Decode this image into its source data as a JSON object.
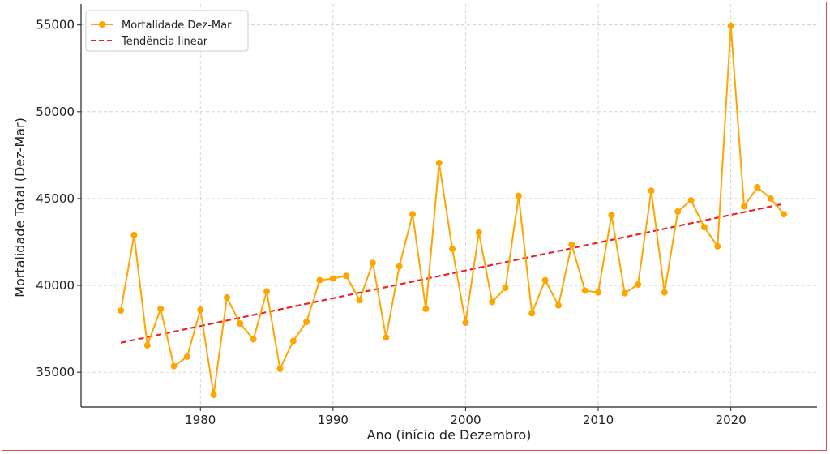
{
  "chart_data": {
    "type": "line",
    "title": "",
    "xlabel": "Ano (início de Dezembro)",
    "ylabel": "Mortalidade Total (Dez-Mar)",
    "xlim": [
      1971,
      2026.5
    ],
    "ylim": [
      33000,
      56200
    ],
    "xticks": [
      1980,
      1990,
      2000,
      2010,
      2020
    ],
    "yticks": [
      35000,
      40000,
      45000,
      50000,
      55000
    ],
    "grid": true,
    "legend_position": "top-left",
    "colors": {
      "series": "#ffa500",
      "trend": "#ee2222",
      "axis": "#222222",
      "grid": "#cccccc"
    },
    "x": [
      1974,
      1975,
      1976,
      1977,
      1978,
      1979,
      1980,
      1981,
      1982,
      1983,
      1984,
      1985,
      1986,
      1987,
      1988,
      1989,
      1990,
      1991,
      1992,
      1993,
      1994,
      1995,
      1996,
      1997,
      1998,
      1999,
      2000,
      2001,
      2002,
      2003,
      2004,
      2005,
      2006,
      2007,
      2008,
      2009,
      2010,
      2011,
      2012,
      2013,
      2014,
      2015,
      2016,
      2017,
      2018,
      2019,
      2020,
      2021,
      2022,
      2023,
      2024
    ],
    "series": [
      {
        "name": "Mortalidade Dez-Mar",
        "style": "line-marker",
        "values": [
          38550,
          42900,
          36550,
          38650,
          35350,
          35900,
          38600,
          33700,
          39300,
          37800,
          36900,
          39650,
          35200,
          36800,
          37900,
          40300,
          40400,
          40550,
          39150,
          41300,
          37000,
          41100,
          44100,
          38650,
          47050,
          42100,
          37850,
          43050,
          39050,
          39850,
          45150,
          38400,
          40300,
          38850,
          42350,
          39700,
          39600,
          44050,
          39550,
          40050,
          45450,
          39600,
          44250,
          44900,
          43350,
          42250,
          54950,
          44550,
          45650,
          45000,
          44100
        ]
      },
      {
        "name": "Tendência linear",
        "style": "dashed",
        "x": [
          1974,
          2024
        ],
        "values": [
          36700,
          44700
        ]
      }
    ]
  }
}
